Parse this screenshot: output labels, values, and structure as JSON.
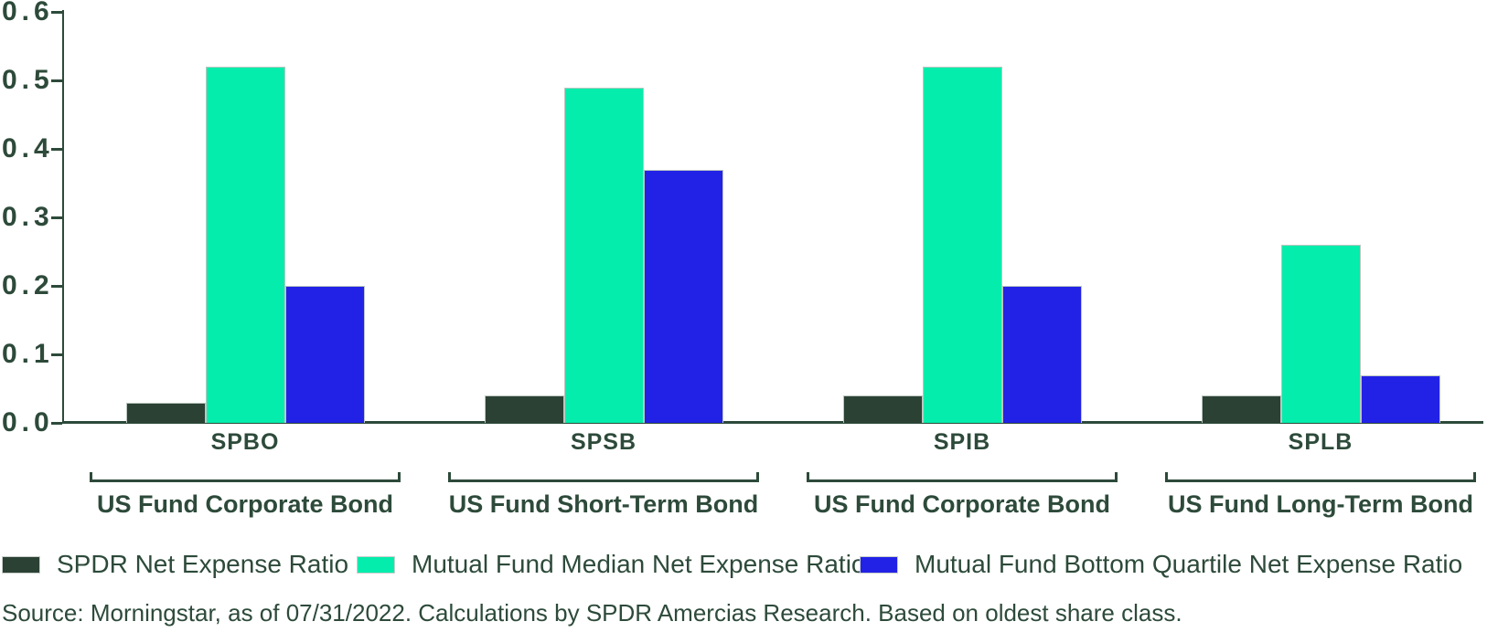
{
  "chart_data": {
    "type": "bar",
    "title": "",
    "xlabel": "",
    "ylabel": "",
    "categories": [
      "SPBO",
      "SPSB",
      "SPIB",
      "SPLB"
    ],
    "category_groups": [
      "US Fund Corporate Bond",
      "US Fund Short-Term Bond",
      "US Fund Corporate Bond",
      "US Fund Long-Term Bond"
    ],
    "series": [
      {
        "name": "SPDR Net Expense Ratio",
        "color": "#2B4134",
        "values": [
          0.03,
          0.04,
          0.04,
          0.04
        ]
      },
      {
        "name": "Mutual Fund Median Net Expense Ratio",
        "color": "#04EDAC",
        "values": [
          0.52,
          0.49,
          0.52,
          0.26
        ]
      },
      {
        "name": "Mutual Fund Bottom Quartile Net Expense Ratio",
        "color": "#2222E6",
        "values": [
          0.2,
          0.37,
          0.2,
          0.07
        ]
      }
    ],
    "ylim": [
      0,
      0.6
    ],
    "ytick_labels": [
      "0.0",
      "0.1",
      "0.2",
      "0.3",
      "0.4",
      "0.5",
      "0.6"
    ],
    "grid": false,
    "legend_position": "bottom"
  },
  "source_note": "Source: Morningstar, as of 07/31/2022. Calculations by SPDR Amercias Research. Based on oldest share class.",
  "colors": {
    "text": "#2D4A3A",
    "axis": "#2D4A3A",
    "bar_edge": "#BCC6C0",
    "background": "#FFFFFF"
  }
}
